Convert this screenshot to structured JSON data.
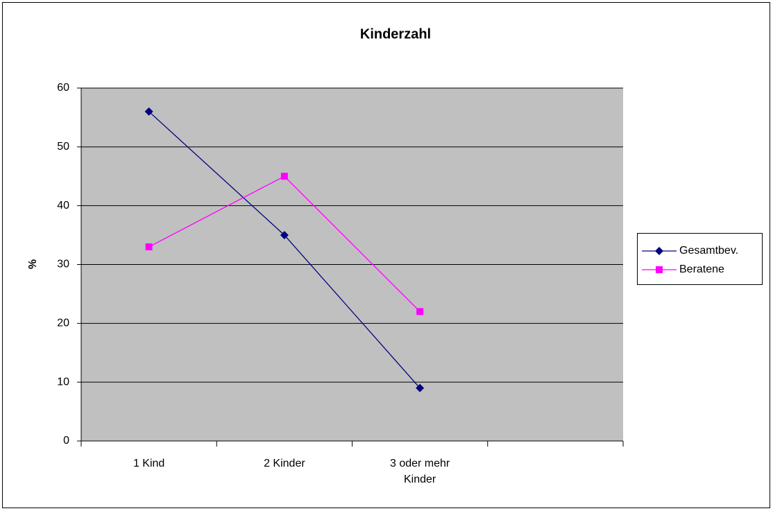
{
  "chart_data": {
    "type": "line",
    "title": "Kinderzahl",
    "y_label": "%",
    "categories": [
      "1 Kind",
      "2 Kinder",
      "3 oder mehr Kinder",
      null
    ],
    "series": [
      {
        "name": "Gesamtbev.",
        "color": "#000080",
        "marker": "diamond",
        "values": [
          56,
          35,
          9,
          null
        ]
      },
      {
        "name": "Beratene",
        "color": "#ff00ff",
        "marker": "square",
        "values": [
          33,
          45,
          22,
          null
        ]
      }
    ],
    "ylim": [
      0,
      60
    ],
    "yticks": [
      0,
      10,
      20,
      30,
      40,
      50,
      60
    ],
    "grid": true,
    "legend": "right"
  }
}
